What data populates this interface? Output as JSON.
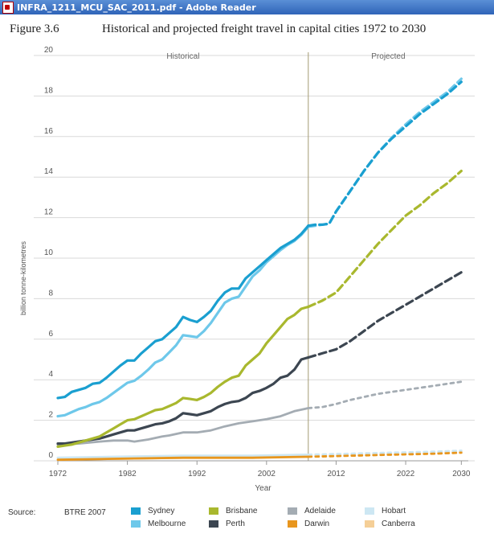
{
  "window": {
    "title": "INFRA_1211_MCU_SAC_2011.pdf - Adobe Reader",
    "icon": "pdf-icon"
  },
  "figure": {
    "label": "Figure 3.6",
    "title": "Historical and projected freight travel in capital cities 1972 to 2030"
  },
  "source": {
    "label": "Source:",
    "value": "BTRE 2007"
  },
  "chart_data": {
    "type": "line",
    "ylabel": "billion tonne-kilometres",
    "xlabel": "Year",
    "xlim": [
      1972,
      2031
    ],
    "ylim": [
      0,
      20
    ],
    "xticks": [
      "1972",
      "1982",
      "1992",
      "2002",
      "2012",
      "2022",
      "2030"
    ],
    "yticks": [
      "0",
      "2",
      "4",
      "6",
      "8",
      "10",
      "12",
      "14",
      "16",
      "18",
      "20"
    ],
    "grid": "horizontal",
    "legend_position": "bottom",
    "divider_year": 2008,
    "regions": [
      {
        "label": "Historical",
        "from": 1972,
        "to": 2008
      },
      {
        "label": "Projected",
        "from": 2008,
        "to": 2031
      }
    ],
    "series": [
      {
        "name": "Sydney",
        "color": "#1a9fd0",
        "historical": [
          [
            1972,
            3.1
          ],
          [
            1973,
            3.15
          ],
          [
            1974,
            3.4
          ],
          [
            1975,
            3.5
          ],
          [
            1976,
            3.6
          ],
          [
            1977,
            3.8
          ],
          [
            1978,
            3.85
          ],
          [
            1979,
            4.1
          ],
          [
            1980,
            4.4
          ],
          [
            1981,
            4.7
          ],
          [
            1982,
            4.95
          ],
          [
            1983,
            4.95
          ],
          [
            1984,
            5.3
          ],
          [
            1985,
            5.6
          ],
          [
            1986,
            5.9
          ],
          [
            1987,
            6.0
          ],
          [
            1988,
            6.3
          ],
          [
            1989,
            6.6
          ],
          [
            1990,
            7.1
          ],
          [
            1991,
            6.95
          ],
          [
            1992,
            6.85
          ],
          [
            1993,
            7.1
          ],
          [
            1994,
            7.4
          ],
          [
            1995,
            7.9
          ],
          [
            1996,
            8.3
          ],
          [
            1997,
            8.5
          ],
          [
            1998,
            8.5
          ],
          [
            1999,
            9.0
          ],
          [
            2000,
            9.3
          ],
          [
            2001,
            9.6
          ],
          [
            2002,
            9.9
          ],
          [
            2003,
            10.2
          ],
          [
            2004,
            10.5
          ],
          [
            2005,
            10.7
          ],
          [
            2006,
            10.9
          ],
          [
            2007,
            11.2
          ],
          [
            2008,
            11.6
          ]
        ],
        "projected": [
          [
            2008,
            11.6
          ],
          [
            2009,
            11.65
          ],
          [
            2010,
            11.65
          ],
          [
            2011,
            11.7
          ],
          [
            2012,
            12.3
          ],
          [
            2014,
            13.3
          ],
          [
            2016,
            14.3
          ],
          [
            2018,
            15.2
          ],
          [
            2020,
            15.9
          ],
          [
            2022,
            16.5
          ],
          [
            2024,
            17.1
          ],
          [
            2026,
            17.6
          ],
          [
            2028,
            18.1
          ],
          [
            2030,
            18.7
          ]
        ]
      },
      {
        "name": "Melbourne",
        "color": "#6ec8ea",
        "historical": [
          [
            1972,
            2.2
          ],
          [
            1973,
            2.25
          ],
          [
            1974,
            2.4
          ],
          [
            1975,
            2.55
          ],
          [
            1976,
            2.65
          ],
          [
            1977,
            2.8
          ],
          [
            1978,
            2.9
          ],
          [
            1979,
            3.1
          ],
          [
            1980,
            3.35
          ],
          [
            1981,
            3.6
          ],
          [
            1982,
            3.85
          ],
          [
            1983,
            3.95
          ],
          [
            1984,
            4.2
          ],
          [
            1985,
            4.5
          ],
          [
            1986,
            4.85
          ],
          [
            1987,
            5.0
          ],
          [
            1988,
            5.35
          ],
          [
            1989,
            5.7
          ],
          [
            1990,
            6.2
          ],
          [
            1991,
            6.15
          ],
          [
            1992,
            6.1
          ],
          [
            1993,
            6.4
          ],
          [
            1994,
            6.8
          ],
          [
            1995,
            7.3
          ],
          [
            1996,
            7.8
          ],
          [
            1997,
            8.0
          ],
          [
            1998,
            8.1
          ],
          [
            1999,
            8.6
          ],
          [
            2000,
            9.1
          ],
          [
            2001,
            9.4
          ],
          [
            2002,
            9.8
          ],
          [
            2003,
            10.1
          ],
          [
            2004,
            10.4
          ],
          [
            2005,
            10.65
          ],
          [
            2006,
            10.85
          ],
          [
            2007,
            11.15
          ],
          [
            2008,
            11.55
          ]
        ],
        "projected": [
          [
            2008,
            11.55
          ],
          [
            2009,
            11.6
          ],
          [
            2010,
            11.65
          ],
          [
            2011,
            11.7
          ],
          [
            2012,
            12.3
          ],
          [
            2014,
            13.3
          ],
          [
            2016,
            14.3
          ],
          [
            2018,
            15.2
          ],
          [
            2020,
            15.95
          ],
          [
            2022,
            16.6
          ],
          [
            2024,
            17.2
          ],
          [
            2026,
            17.7
          ],
          [
            2028,
            18.2
          ],
          [
            2030,
            18.85
          ]
        ]
      },
      {
        "name": "Brisbane",
        "color": "#a9b82e",
        "historical": [
          [
            1972,
            0.7
          ],
          [
            1973,
            0.75
          ],
          [
            1974,
            0.8
          ],
          [
            1975,
            0.9
          ],
          [
            1976,
            1.0
          ],
          [
            1977,
            1.1
          ],
          [
            1978,
            1.2
          ],
          [
            1979,
            1.4
          ],
          [
            1980,
            1.6
          ],
          [
            1981,
            1.8
          ],
          [
            1982,
            2.0
          ],
          [
            1983,
            2.05
          ],
          [
            1984,
            2.2
          ],
          [
            1985,
            2.35
          ],
          [
            1986,
            2.5
          ],
          [
            1987,
            2.55
          ],
          [
            1988,
            2.7
          ],
          [
            1989,
            2.85
          ],
          [
            1990,
            3.1
          ],
          [
            1991,
            3.05
          ],
          [
            1992,
            3.0
          ],
          [
            1993,
            3.15
          ],
          [
            1994,
            3.35
          ],
          [
            1995,
            3.65
          ],
          [
            1996,
            3.9
          ],
          [
            1997,
            4.1
          ],
          [
            1998,
            4.2
          ],
          [
            1999,
            4.7
          ],
          [
            2000,
            5.0
          ],
          [
            2001,
            5.3
          ],
          [
            2002,
            5.8
          ],
          [
            2003,
            6.2
          ],
          [
            2004,
            6.6
          ],
          [
            2005,
            7.0
          ],
          [
            2006,
            7.2
          ],
          [
            2007,
            7.5
          ],
          [
            2008,
            7.6
          ]
        ],
        "projected": [
          [
            2008,
            7.6
          ],
          [
            2010,
            7.9
          ],
          [
            2012,
            8.3
          ],
          [
            2014,
            9.1
          ],
          [
            2016,
            9.9
          ],
          [
            2018,
            10.7
          ],
          [
            2020,
            11.4
          ],
          [
            2022,
            12.1
          ],
          [
            2024,
            12.6
          ],
          [
            2026,
            13.2
          ],
          [
            2028,
            13.7
          ],
          [
            2030,
            14.3
          ]
        ]
      },
      {
        "name": "Perth",
        "color": "#3c4651",
        "historical": [
          [
            1972,
            0.85
          ],
          [
            1973,
            0.85
          ],
          [
            1974,
            0.9
          ],
          [
            1975,
            0.95
          ],
          [
            1976,
            1.0
          ],
          [
            1977,
            1.05
          ],
          [
            1978,
            1.1
          ],
          [
            1979,
            1.2
          ],
          [
            1980,
            1.3
          ],
          [
            1981,
            1.4
          ],
          [
            1982,
            1.5
          ],
          [
            1983,
            1.5
          ],
          [
            1984,
            1.6
          ],
          [
            1985,
            1.7
          ],
          [
            1986,
            1.8
          ],
          [
            1987,
            1.85
          ],
          [
            1988,
            1.95
          ],
          [
            1989,
            2.1
          ],
          [
            1990,
            2.35
          ],
          [
            1991,
            2.3
          ],
          [
            1992,
            2.25
          ],
          [
            1993,
            2.35
          ],
          [
            1994,
            2.45
          ],
          [
            1995,
            2.65
          ],
          [
            1996,
            2.8
          ],
          [
            1997,
            2.9
          ],
          [
            1998,
            2.95
          ],
          [
            1999,
            3.1
          ],
          [
            2000,
            3.35
          ],
          [
            2001,
            3.45
          ],
          [
            2002,
            3.6
          ],
          [
            2003,
            3.8
          ],
          [
            2004,
            4.1
          ],
          [
            2005,
            4.2
          ],
          [
            2006,
            4.5
          ],
          [
            2007,
            5.0
          ],
          [
            2008,
            5.1
          ]
        ],
        "projected": [
          [
            2008,
            5.1
          ],
          [
            2010,
            5.3
          ],
          [
            2012,
            5.5
          ],
          [
            2014,
            5.9
          ],
          [
            2016,
            6.4
          ],
          [
            2018,
            6.9
          ],
          [
            2020,
            7.3
          ],
          [
            2022,
            7.7
          ],
          [
            2024,
            8.1
          ],
          [
            2026,
            8.5
          ],
          [
            2028,
            8.9
          ],
          [
            2030,
            9.3
          ]
        ]
      },
      {
        "name": "Adelaide",
        "color": "#a4acb3",
        "historical": [
          [
            1972,
            0.8
          ],
          [
            1975,
            0.85
          ],
          [
            1978,
            0.95
          ],
          [
            1980,
            1.0
          ],
          [
            1982,
            1.0
          ],
          [
            1983,
            0.95
          ],
          [
            1985,
            1.05
          ],
          [
            1987,
            1.2
          ],
          [
            1988,
            1.25
          ],
          [
            1990,
            1.4
          ],
          [
            1992,
            1.4
          ],
          [
            1994,
            1.5
          ],
          [
            1996,
            1.7
          ],
          [
            1998,
            1.85
          ],
          [
            2000,
            1.95
          ],
          [
            2002,
            2.05
          ],
          [
            2004,
            2.2
          ],
          [
            2006,
            2.45
          ],
          [
            2008,
            2.6
          ]
        ],
        "projected": [
          [
            2008,
            2.6
          ],
          [
            2010,
            2.65
          ],
          [
            2012,
            2.8
          ],
          [
            2014,
            3.0
          ],
          [
            2016,
            3.15
          ],
          [
            2018,
            3.3
          ],
          [
            2020,
            3.4
          ],
          [
            2022,
            3.5
          ],
          [
            2024,
            3.6
          ],
          [
            2026,
            3.7
          ],
          [
            2028,
            3.8
          ],
          [
            2030,
            3.9
          ]
        ]
      },
      {
        "name": "Darwin",
        "color": "#e8961e",
        "historical": [
          [
            1972,
            0.05
          ],
          [
            1980,
            0.1
          ],
          [
            1990,
            0.15
          ],
          [
            2000,
            0.15
          ],
          [
            2008,
            0.2
          ]
        ],
        "projected": [
          [
            2008,
            0.2
          ],
          [
            2014,
            0.25
          ],
          [
            2020,
            0.3
          ],
          [
            2026,
            0.35
          ],
          [
            2030,
            0.4
          ]
        ]
      },
      {
        "name": "Hobart",
        "color": "#cde7f3",
        "historical": [
          [
            1972,
            0.15
          ],
          [
            1980,
            0.2
          ],
          [
            1990,
            0.25
          ],
          [
            2000,
            0.25
          ],
          [
            2008,
            0.3
          ]
        ],
        "projected": [
          [
            2008,
            0.3
          ],
          [
            2014,
            0.35
          ],
          [
            2020,
            0.4
          ],
          [
            2026,
            0.45
          ],
          [
            2030,
            0.5
          ]
        ]
      },
      {
        "name": "Canberra",
        "color": "#f5cf97",
        "historical": [
          [
            1972,
            0.05
          ],
          [
            1980,
            0.1
          ],
          [
            1990,
            0.15
          ],
          [
            2000,
            0.15
          ],
          [
            2008,
            0.25
          ]
        ],
        "projected": [
          [
            2008,
            0.25
          ],
          [
            2014,
            0.3
          ],
          [
            2020,
            0.35
          ],
          [
            2026,
            0.4
          ],
          [
            2030,
            0.45
          ]
        ]
      }
    ]
  }
}
